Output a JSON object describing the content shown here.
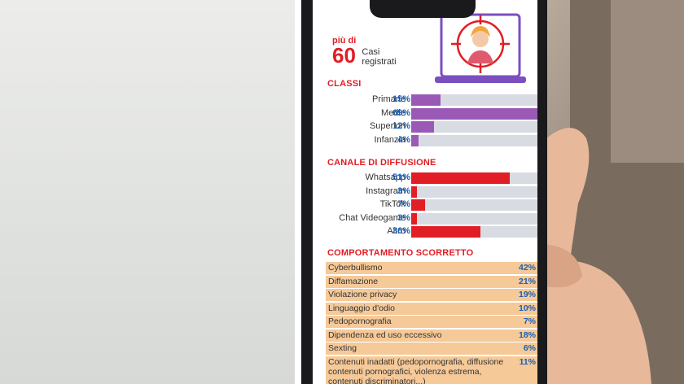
{
  "photo_left": {
    "description": ""
  },
  "infographic": {
    "pre": "più di",
    "count": "60",
    "count_label_1": "Casi",
    "count_label_2": "registrati",
    "accent": "#e11d25",
    "sections": {
      "classi": {
        "title": "CLASSI",
        "bar_color": "#9b59b6",
        "rows": [
          {
            "label": "Primarie",
            "pct": "15%",
            "value": 15
          },
          {
            "label": "Medie",
            "pct": "69%",
            "value": 69
          },
          {
            "label": "Superiori",
            "pct": "12%",
            "value": 12
          },
          {
            "label": "Infanzia",
            "pct": "4%",
            "value": 4
          }
        ]
      },
      "canale": {
        "title": "CANALE DI DIFFUSIONE",
        "bar_color": "#e11d25",
        "rows": [
          {
            "label": "Whatsapp",
            "pct": "51%",
            "value": 51
          },
          {
            "label": "Instagram",
            "pct": "3%",
            "value": 3
          },
          {
            "label": "TikTok",
            "pct": "7%",
            "value": 7
          },
          {
            "label": "Chat Videogame",
            "pct": "3%",
            "value": 3
          },
          {
            "label": "Altro",
            "pct": "36%",
            "value": 36
          }
        ]
      },
      "comportamento": {
        "title": "COMPORTAMENTO SCORRETTO",
        "row_color": "#f6c998",
        "rows": [
          {
            "label": "Cyberbullismo",
            "pct": "42%"
          },
          {
            "label": "Diffamazione",
            "pct": "21%"
          },
          {
            "label": "Violazione privacy",
            "pct": "19%"
          },
          {
            "label": "Linguaggio d'odio",
            "pct": "10%"
          },
          {
            "label": "Pedopornografia",
            "pct": "7%"
          },
          {
            "label": "Dipendenza ed uso eccessivo",
            "pct": "18%"
          },
          {
            "label": "Sexting",
            "pct": "6%"
          }
        ],
        "last_row": {
          "label": "Contenuti inadatti (pedopornografia, diffusione contenuti pornografici, violenza estrema, contenuti discriminatori...)",
          "pct": "11%"
        }
      }
    }
  }
}
